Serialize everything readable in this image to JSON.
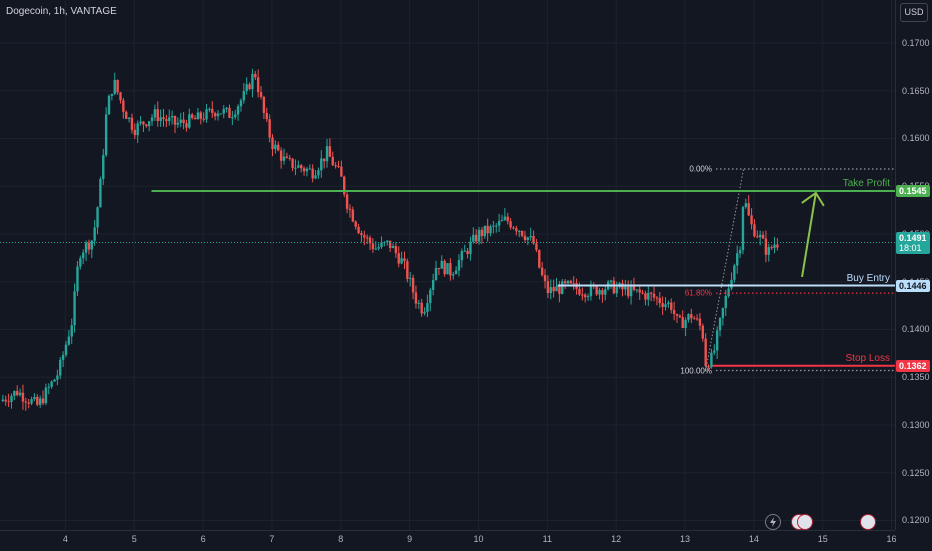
{
  "header": {
    "title": "Dogecoin, 1h, VANTAGE",
    "currency": "USD"
  },
  "colors": {
    "bg": "#131722",
    "up": "#26a69a",
    "down": "#ef5350",
    "take_profit": "#4caf50",
    "buy_entry": "#bbdefb",
    "stop_loss": "#f23645",
    "arrow": "#8bc34a",
    "fib": "#9598a1"
  },
  "chart_data": {
    "type": "candlestick",
    "title": "Dogecoin, 1h, VANTAGE",
    "y_axis": {
      "range": [
        0.119,
        0.1745
      ],
      "ticks": [
        "0.1200",
        "0.1250",
        "0.1300",
        "0.1350",
        "0.1400",
        "0.1450",
        "0.1500",
        "0.1550",
        "0.1600",
        "0.1650",
        "0.1700"
      ]
    },
    "x_axis": {
      "range": [
        3.05,
        16.05
      ],
      "ticks": [
        {
          "x": 4,
          "label": "4"
        },
        {
          "x": 5,
          "label": "5"
        },
        {
          "x": 6,
          "label": "6"
        },
        {
          "x": 7,
          "label": "7"
        },
        {
          "x": 8,
          "label": "8"
        },
        {
          "x": 9,
          "label": "9"
        },
        {
          "x": 10,
          "label": "10"
        },
        {
          "x": 11,
          "label": "11"
        },
        {
          "x": 12,
          "label": "12"
        },
        {
          "x": 13,
          "label": "13"
        },
        {
          "x": 14,
          "label": "14"
        },
        {
          "x": 15,
          "label": "15"
        },
        {
          "x": 16,
          "label": "16"
        }
      ]
    },
    "price_path": [
      [
        3.05,
        0.1325
      ],
      [
        3.3,
        0.1335
      ],
      [
        3.6,
        0.132
      ],
      [
        3.9,
        0.1355
      ],
      [
        4.1,
        0.141
      ],
      [
        4.2,
        0.148
      ],
      [
        4.4,
        0.1495
      ],
      [
        4.5,
        0.1545
      ],
      [
        4.6,
        0.163
      ],
      [
        4.7,
        0.166
      ],
      [
        4.85,
        0.163
      ],
      [
        5.0,
        0.161
      ],
      [
        5.3,
        0.1625
      ],
      [
        5.6,
        0.1615
      ],
      [
        5.9,
        0.162
      ],
      [
        6.2,
        0.163
      ],
      [
        6.4,
        0.1625
      ],
      [
        6.6,
        0.1645
      ],
      [
        6.75,
        0.167
      ],
      [
        6.9,
        0.162
      ],
      [
        7.0,
        0.1595
      ],
      [
        7.2,
        0.1575
      ],
      [
        7.4,
        0.157
      ],
      [
        7.6,
        0.1565
      ],
      [
        7.8,
        0.1585
      ],
      [
        8.0,
        0.156
      ],
      [
        8.1,
        0.153
      ],
      [
        8.3,
        0.15
      ],
      [
        8.5,
        0.1485
      ],
      [
        8.7,
        0.149
      ],
      [
        8.9,
        0.147
      ],
      [
        9.1,
        0.143
      ],
      [
        9.2,
        0.142
      ],
      [
        9.4,
        0.147
      ],
      [
        9.6,
        0.146
      ],
      [
        9.8,
        0.148
      ],
      [
        10.0,
        0.15
      ],
      [
        10.2,
        0.1505
      ],
      [
        10.4,
        0.1515
      ],
      [
        10.6,
        0.1505
      ],
      [
        10.8,
        0.149
      ],
      [
        10.9,
        0.146
      ],
      [
        11.0,
        0.144
      ],
      [
        11.3,
        0.1445
      ],
      [
        11.6,
        0.144
      ],
      [
        11.9,
        0.1445
      ],
      [
        12.2,
        0.144
      ],
      [
        12.5,
        0.1435
      ],
      [
        12.8,
        0.1425
      ],
      [
        12.9,
        0.1405
      ],
      [
        13.1,
        0.1415
      ],
      [
        13.25,
        0.14
      ],
      [
        13.3,
        0.1365
      ],
      [
        13.4,
        0.137
      ],
      [
        13.55,
        0.142
      ],
      [
        13.7,
        0.1465
      ],
      [
        13.8,
        0.149
      ],
      [
        13.85,
        0.154
      ],
      [
        13.95,
        0.151
      ],
      [
        14.1,
        0.1495
      ],
      [
        14.2,
        0.148
      ],
      [
        14.3,
        0.149
      ],
      [
        14.35,
        0.1491
      ]
    ],
    "levels": [
      {
        "name": "Take Profit",
        "price": 0.1545,
        "tag": "0.1545",
        "x_start": 5.25,
        "color": "#4caf50"
      },
      {
        "name": "Buy Entry",
        "price": 0.1446,
        "tag": "0.1446",
        "x_start": 11.15,
        "color": "#bbdefb"
      },
      {
        "name": "Stop Loss",
        "price": 0.1362,
        "tag": "0.1362",
        "x_start": 13.4,
        "color": "#f23645"
      }
    ],
    "current_price": {
      "price": 0.1491,
      "tag": "0.1491",
      "countdown": "18:01"
    },
    "fibonacci": {
      "x_start": 13.45,
      "x_end": 16.05,
      "x_anchor_low": 13.3,
      "x_anchor_high": 13.85,
      "levels": [
        {
          "label": "0.00%",
          "price": 0.1568
        },
        {
          "label": "61.80%",
          "price": 0.1438
        },
        {
          "label": "100.00%",
          "price": 0.1357
        }
      ]
    },
    "arrow": {
      "from": [
        14.7,
        0.1455
      ],
      "to": [
        14.9,
        0.1543
      ]
    }
  }
}
